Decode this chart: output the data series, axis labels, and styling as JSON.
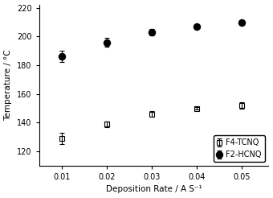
{
  "title": "",
  "xlabel": "Deposition Rate / A S⁻¹",
  "ylabel": "Temperature / °C",
  "xlim": [
    0.005,
    0.056
  ],
  "ylim": [
    110,
    222
  ],
  "xticks": [
    0.01,
    0.02,
    0.03,
    0.04,
    0.05
  ],
  "yticks": [
    120,
    140,
    160,
    180,
    200,
    220
  ],
  "f4tcnq": {
    "x": [
      0.01,
      0.02,
      0.03,
      0.04,
      0.05
    ],
    "y": [
      129,
      139,
      146,
      150,
      152
    ],
    "yerr": [
      4,
      2,
      2,
      1,
      2
    ],
    "marker": "s",
    "markersize": 4,
    "color": "black",
    "fillstyle": "none",
    "label": "F4-TCNQ"
  },
  "f2hcnq": {
    "x": [
      0.01,
      0.02,
      0.03,
      0.04,
      0.05
    ],
    "y": [
      186,
      196,
      203,
      207,
      210
    ],
    "yerr": [
      4,
      3,
      2,
      1,
      1
    ],
    "marker": "o",
    "markersize": 6,
    "color": "black",
    "fillstyle": "full",
    "label": "F2-HCNQ"
  },
  "legend_loc": "lower right",
  "background_color": "#ffffff",
  "plot_background": "#ffffff"
}
